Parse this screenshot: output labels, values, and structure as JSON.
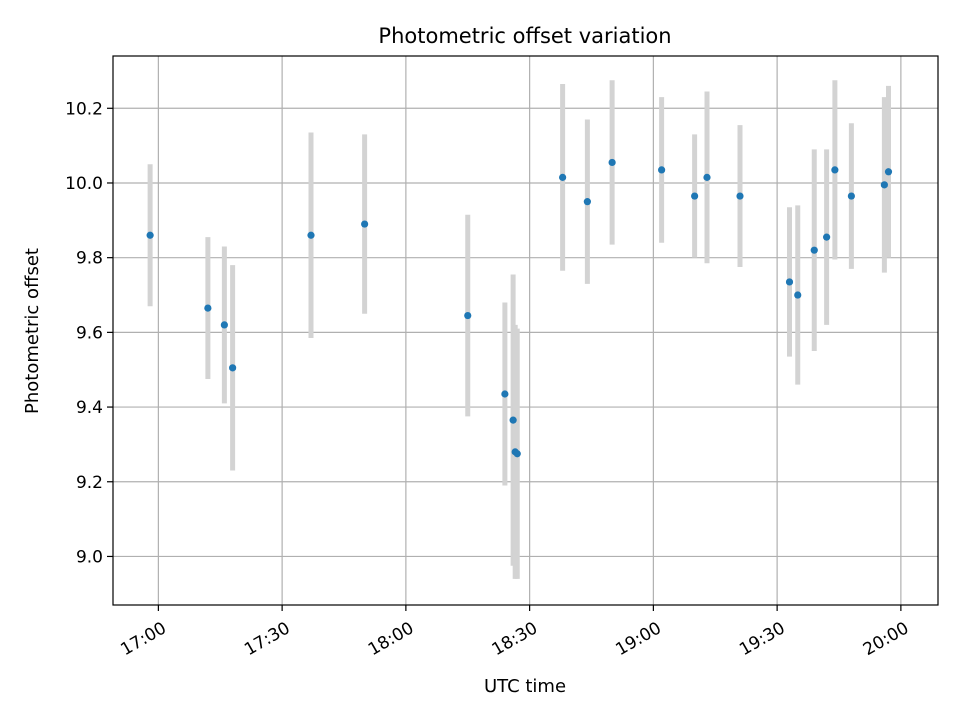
{
  "chart_data": {
    "type": "scatter",
    "title": "Photometric offset variation",
    "xlabel": "UTC time",
    "ylabel": "Photometric offset",
    "x_ticks": [
      "17:00",
      "17:30",
      "18:00",
      "18:30",
      "19:00",
      "19:30",
      "20:00"
    ],
    "y_ticks": [
      "9.0",
      "9.2",
      "9.4",
      "9.6",
      "9.8",
      "10.0",
      "10.2"
    ],
    "xlim": [
      "16:49",
      "20:09"
    ],
    "ylim": [
      8.87,
      10.34
    ],
    "grid": true,
    "colors": {
      "point": "#1f77b4",
      "errorbar": "#d3d3d3",
      "grid": "#b0b0b0"
    },
    "points": [
      {
        "x": "16:58",
        "y": 9.86,
        "err": 0.19
      },
      {
        "x": "17:12",
        "y": 9.665,
        "err": 0.19
      },
      {
        "x": "17:16",
        "y": 9.62,
        "err": 0.21
      },
      {
        "x": "17:18",
        "y": 9.505,
        "err": 0.275
      },
      {
        "x": "17:37",
        "y": 9.86,
        "err": 0.275
      },
      {
        "x": "17:50",
        "y": 9.89,
        "err": 0.24
      },
      {
        "x": "18:15",
        "y": 9.645,
        "err": 0.27
      },
      {
        "x": "18:24",
        "y": 9.435,
        "err": 0.245
      },
      {
        "x": "18:26",
        "y": 9.365,
        "err": 0.39
      },
      {
        "x": "18:26.5",
        "y": 9.28,
        "err": 0.34
      },
      {
        "x": "18:27",
        "y": 9.275,
        "err": 0.335
      },
      {
        "x": "18:38",
        "y": 10.015,
        "err": 0.25
      },
      {
        "x": "18:44",
        "y": 9.95,
        "err": 0.22
      },
      {
        "x": "18:50",
        "y": 10.055,
        "err": 0.22
      },
      {
        "x": "19:02",
        "y": 10.035,
        "err": 0.195
      },
      {
        "x": "19:10",
        "y": 9.965,
        "err": 0.165
      },
      {
        "x": "19:13",
        "y": 10.015,
        "err": 0.23
      },
      {
        "x": "19:21",
        "y": 9.965,
        "err": 0.19
      },
      {
        "x": "19:33",
        "y": 9.735,
        "err": 0.2
      },
      {
        "x": "19:35",
        "y": 9.7,
        "err": 0.24
      },
      {
        "x": "19:39",
        "y": 9.82,
        "err": 0.27
      },
      {
        "x": "19:42",
        "y": 9.855,
        "err": 0.235
      },
      {
        "x": "19:44",
        "y": 10.035,
        "err": 0.24
      },
      {
        "x": "19:48",
        "y": 9.965,
        "err": 0.195
      },
      {
        "x": "19:56",
        "y": 9.995,
        "err": 0.235
      },
      {
        "x": "19:57",
        "y": 10.03,
        "err": 0.23
      }
    ]
  }
}
